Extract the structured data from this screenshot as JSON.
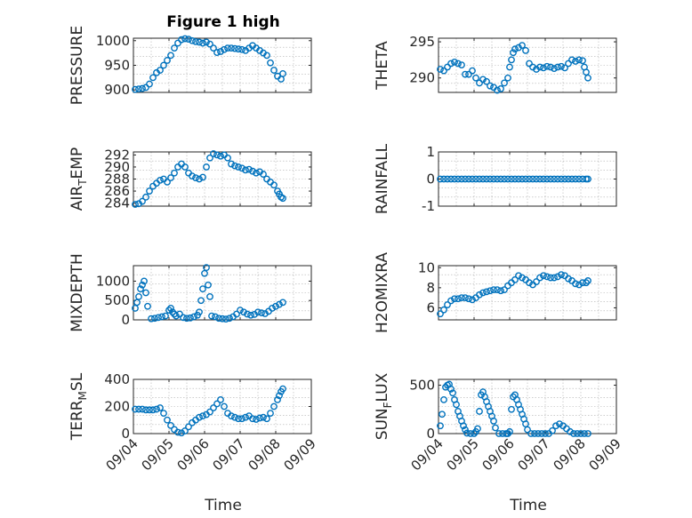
{
  "figure": {
    "title": "Figure 1 high"
  },
  "chart_data": [
    {
      "type": "scatter",
      "id": "pressure",
      "ylabel": "PRESSURE",
      "xlabel": "",
      "ylim": [
        895,
        1005
      ],
      "yticks": [
        900,
        950,
        1000
      ],
      "xlim": [
        0,
        5
      ],
      "xticks": [
        0,
        1,
        2,
        3,
        4,
        5
      ],
      "xticklabels": [
        "09/04",
        "09/05",
        "09/06",
        "09/07",
        "09/08",
        "09/09"
      ],
      "show_xticklabels": false,
      "x": [
        0.05,
        0.15,
        0.25,
        0.35,
        0.45,
        0.55,
        0.65,
        0.75,
        0.85,
        0.95,
        1.05,
        1.15,
        1.25,
        1.35,
        1.45,
        1.55,
        1.65,
        1.75,
        1.85,
        1.95,
        2.05,
        2.15,
        2.25,
        2.35,
        2.45,
        2.55,
        2.65,
        2.75,
        2.85,
        2.95,
        3.05,
        3.15,
        3.25,
        3.35,
        3.45,
        3.55,
        3.65,
        3.75,
        3.85,
        3.95,
        4.05,
        4.15,
        4.2
      ],
      "y": [
        901,
        902,
        903,
        905,
        912,
        925,
        935,
        940,
        950,
        960,
        970,
        985,
        995,
        1002,
        1004,
        1003,
        1000,
        998,
        997,
        995,
        997,
        993,
        985,
        976,
        978,
        982,
        985,
        985,
        984,
        983,
        982,
        980,
        985,
        990,
        985,
        980,
        975,
        970,
        955,
        940,
        928,
        922,
        933
      ]
    },
    {
      "type": "scatter",
      "id": "theta",
      "ylabel": "THETA",
      "xlabel": "",
      "ylim": [
        288,
        295.5
      ],
      "yticks": [
        290,
        295
      ],
      "xlim": [
        0,
        5
      ],
      "xticks": [
        0,
        1,
        2,
        3,
        4,
        5
      ],
      "xticklabels": [
        "09/04",
        "09/05",
        "09/06",
        "09/07",
        "09/08",
        "09/09"
      ],
      "show_xticklabels": false,
      "x": [
        0.05,
        0.15,
        0.25,
        0.35,
        0.45,
        0.55,
        0.65,
        0.75,
        0.85,
        0.95,
        1.05,
        1.15,
        1.25,
        1.35,
        1.45,
        1.55,
        1.65,
        1.75,
        1.85,
        1.95,
        2.0,
        2.05,
        2.1,
        2.15,
        2.25,
        2.35,
        2.45,
        2.55,
        2.65,
        2.75,
        2.85,
        2.95,
        3.05,
        3.15,
        3.25,
        3.35,
        3.45,
        3.55,
        3.65,
        3.75,
        3.85,
        3.95,
        4.05,
        4.1,
        4.15,
        4.2
      ],
      "y": [
        291.2,
        291.0,
        291.5,
        292.0,
        292.2,
        292.0,
        291.8,
        290.5,
        290.5,
        291.0,
        290.0,
        289.3,
        289.8,
        289.5,
        288.9,
        288.7,
        288.3,
        288.5,
        289.3,
        290.0,
        291.5,
        292.5,
        293.5,
        294.0,
        294.2,
        294.5,
        293.8,
        292.0,
        291.5,
        291.2,
        291.5,
        291.4,
        291.6,
        291.5,
        291.3,
        291.5,
        291.6,
        291.4,
        292.0,
        292.5,
        292.3,
        292.5,
        292.4,
        291.5,
        290.8,
        290.0
      ]
    },
    {
      "type": "scatter",
      "id": "airtemp",
      "ylabel": "AIR_TEMP",
      "ylabel_main": "AIR",
      "ylabel_sub": "T",
      "ylabel_rest": "EMP",
      "xlabel": "",
      "ylim": [
        283.5,
        292.5
      ],
      "yticks": [
        284,
        286,
        288,
        290,
        292
      ],
      "xlim": [
        0,
        5
      ],
      "xticks": [
        0,
        1,
        2,
        3,
        4,
        5
      ],
      "xticklabels": [
        "09/04",
        "09/05",
        "09/06",
        "09/07",
        "09/08",
        "09/09"
      ],
      "show_xticklabels": false,
      "x": [
        0.05,
        0.15,
        0.25,
        0.35,
        0.45,
        0.55,
        0.65,
        0.75,
        0.85,
        0.95,
        1.05,
        1.15,
        1.25,
        1.35,
        1.45,
        1.55,
        1.65,
        1.75,
        1.85,
        1.95,
        2.05,
        2.15,
        2.25,
        2.35,
        2.45,
        2.55,
        2.65,
        2.75,
        2.85,
        2.95,
        3.05,
        3.15,
        3.25,
        3.35,
        3.45,
        3.55,
        3.65,
        3.75,
        3.85,
        3.95,
        4.05,
        4.1,
        4.15,
        4.2
      ],
      "y": [
        283.8,
        283.9,
        284.3,
        285.0,
        286.0,
        286.8,
        287.3,
        287.8,
        288.0,
        287.5,
        288.2,
        289.0,
        290.0,
        290.5,
        290.0,
        289.0,
        288.5,
        288.2,
        288.0,
        288.3,
        290.0,
        291.5,
        292.2,
        292.0,
        291.8,
        292.0,
        291.5,
        290.5,
        290.2,
        290.0,
        289.8,
        289.5,
        289.6,
        289.3,
        289.0,
        289.2,
        288.8,
        288.0,
        287.5,
        287.0,
        286.0,
        285.5,
        285.0,
        284.8
      ]
    },
    {
      "type": "scatter",
      "id": "rainfall",
      "ylabel": "RAINFALL",
      "xlabel": "",
      "ylim": [
        -1,
        1
      ],
      "yticks": [
        -1,
        0,
        1
      ],
      "xlim": [
        0,
        5
      ],
      "xticks": [
        0,
        1,
        2,
        3,
        4,
        5
      ],
      "xticklabels": [
        "09/04",
        "09/05",
        "09/06",
        "09/07",
        "09/08",
        "09/09"
      ],
      "show_xticklabels": false,
      "x": [
        0.05,
        0.15,
        0.25,
        0.35,
        0.45,
        0.55,
        0.65,
        0.75,
        0.85,
        0.95,
        1.05,
        1.15,
        1.25,
        1.35,
        1.45,
        1.55,
        1.65,
        1.75,
        1.85,
        1.95,
        2.05,
        2.15,
        2.25,
        2.35,
        2.45,
        2.55,
        2.65,
        2.75,
        2.85,
        2.95,
        3.05,
        3.15,
        3.25,
        3.35,
        3.45,
        3.55,
        3.65,
        3.75,
        3.85,
        3.95,
        4.05,
        4.15,
        4.2
      ],
      "y": [
        0,
        0,
        0,
        0,
        0,
        0,
        0,
        0,
        0,
        0,
        0,
        0,
        0,
        0,
        0,
        0,
        0,
        0,
        0,
        0,
        0,
        0,
        0,
        0,
        0,
        0,
        0,
        0,
        0,
        0,
        0,
        0,
        0,
        0,
        0,
        0,
        0,
        0,
        0,
        0,
        0,
        0,
        0
      ]
    },
    {
      "type": "scatter",
      "id": "mixdepth",
      "ylabel": "MIXDEPTH",
      "xlabel": "",
      "ylim": [
        0,
        1400
      ],
      "yticks": [
        0,
        500,
        1000
      ],
      "xlim": [
        0,
        5
      ],
      "xticks": [
        0,
        1,
        2,
        3,
        4,
        5
      ],
      "xticklabels": [
        "09/04",
        "09/05",
        "09/06",
        "09/07",
        "09/08",
        "09/09"
      ],
      "show_xticklabels": false,
      "x": [
        0.05,
        0.1,
        0.15,
        0.2,
        0.25,
        0.3,
        0.35,
        0.4,
        0.5,
        0.6,
        0.7,
        0.8,
        0.9,
        1.0,
        1.05,
        1.1,
        1.15,
        1.2,
        1.3,
        1.4,
        1.5,
        1.6,
        1.7,
        1.8,
        1.85,
        1.9,
        1.95,
        2.0,
        2.05,
        2.1,
        2.15,
        2.2,
        2.3,
        2.4,
        2.5,
        2.6,
        2.7,
        2.8,
        2.9,
        3.0,
        3.1,
        3.2,
        3.3,
        3.4,
        3.5,
        3.6,
        3.7,
        3.8,
        3.9,
        4.0,
        4.1,
        4.2
      ],
      "y": [
        300,
        450,
        600,
        800,
        900,
        1000,
        700,
        350,
        30,
        40,
        60,
        80,
        100,
        250,
        300,
        200,
        150,
        100,
        150,
        60,
        40,
        50,
        80,
        120,
        200,
        500,
        800,
        1200,
        1350,
        900,
        600,
        100,
        80,
        40,
        30,
        20,
        40,
        80,
        150,
        250,
        200,
        150,
        120,
        140,
        200,
        180,
        160,
        220,
        300,
        350,
        400,
        450
      ]
    },
    {
      "type": "scatter",
      "id": "h2omixra",
      "ylabel": "H2OMIXRA",
      "xlabel": "",
      "ylim": [
        4.8,
        10.2
      ],
      "yticks": [
        6,
        8,
        10
      ],
      "xlim": [
        0,
        5
      ],
      "xticks": [
        0,
        1,
        2,
        3,
        4,
        5
      ],
      "xticklabels": [
        "09/04",
        "09/05",
        "09/06",
        "09/07",
        "09/08",
        "09/09"
      ],
      "show_xticklabels": false,
      "x": [
        0.05,
        0.15,
        0.25,
        0.35,
        0.45,
        0.55,
        0.65,
        0.75,
        0.85,
        0.95,
        1.05,
        1.15,
        1.25,
        1.35,
        1.45,
        1.55,
        1.65,
        1.75,
        1.85,
        1.95,
        2.05,
        2.15,
        2.25,
        2.35,
        2.45,
        2.55,
        2.65,
        2.75,
        2.85,
        2.95,
        3.05,
        3.15,
        3.25,
        3.35,
        3.45,
        3.55,
        3.65,
        3.75,
        3.85,
        3.95,
        4.05,
        4.15,
        4.2
      ],
      "y": [
        5.4,
        5.8,
        6.3,
        6.7,
        6.9,
        6.9,
        7.0,
        7.0,
        6.9,
        6.8,
        7.0,
        7.3,
        7.5,
        7.6,
        7.7,
        7.8,
        7.8,
        7.7,
        7.8,
        8.2,
        8.5,
        8.8,
        9.2,
        9.0,
        8.8,
        8.5,
        8.3,
        8.6,
        9.0,
        9.2,
        9.1,
        9.0,
        9.0,
        9.1,
        9.3,
        9.2,
        8.9,
        8.7,
        8.4,
        8.3,
        8.5,
        8.5,
        8.7
      ]
    },
    {
      "type": "scatter",
      "id": "terrmsl",
      "ylabel": "TERR_MSL",
      "ylabel_main": "TERR",
      "ylabel_sub": "M",
      "ylabel_rest": "SL",
      "xlabel": "Time",
      "ylim": [
        0,
        400
      ],
      "yticks": [
        0,
        200,
        400
      ],
      "xlim": [
        0,
        5
      ],
      "xticks": [
        0,
        1,
        2,
        3,
        4,
        5
      ],
      "xticklabels": [
        "09/04",
        "09/05",
        "09/06",
        "09/07",
        "09/08",
        "09/09"
      ],
      "show_xticklabels": true,
      "x": [
        0.05,
        0.15,
        0.25,
        0.35,
        0.45,
        0.55,
        0.65,
        0.75,
        0.85,
        0.95,
        1.05,
        1.15,
        1.25,
        1.35,
        1.45,
        1.55,
        1.65,
        1.75,
        1.85,
        1.95,
        2.05,
        2.15,
        2.25,
        2.35,
        2.45,
        2.55,
        2.65,
        2.75,
        2.85,
        2.95,
        3.05,
        3.15,
        3.25,
        3.35,
        3.45,
        3.55,
        3.65,
        3.75,
        3.85,
        3.95,
        4.05,
        4.1,
        4.15,
        4.2
      ],
      "y": [
        180,
        180,
        180,
        175,
        175,
        175,
        180,
        190,
        150,
        100,
        60,
        30,
        10,
        5,
        20,
        50,
        80,
        100,
        120,
        130,
        140,
        160,
        190,
        220,
        250,
        200,
        150,
        130,
        120,
        110,
        110,
        120,
        130,
        110,
        105,
        115,
        120,
        110,
        150,
        200,
        250,
        280,
        310,
        330
      ]
    },
    {
      "type": "scatter",
      "id": "sunflux",
      "ylabel": "SUN_FLUX",
      "ylabel_main": "SUN",
      "ylabel_sub": "F",
      "ylabel_rest": "LUX",
      "xlabel": "Time",
      "ylim": [
        0,
        560
      ],
      "yticks": [
        0,
        500
      ],
      "xlim": [
        0,
        5
      ],
      "xticks": [
        0,
        1,
        2,
        3,
        4,
        5
      ],
      "xticklabels": [
        "09/04",
        "09/05",
        "09/06",
        "09/07",
        "09/08",
        "09/09"
      ],
      "show_xticklabels": true,
      "x": [
        0.05,
        0.1,
        0.15,
        0.2,
        0.25,
        0.3,
        0.35,
        0.4,
        0.45,
        0.5,
        0.55,
        0.6,
        0.65,
        0.7,
        0.75,
        0.8,
        0.9,
        1.0,
        1.05,
        1.1,
        1.15,
        1.2,
        1.25,
        1.3,
        1.35,
        1.4,
        1.45,
        1.5,
        1.55,
        1.6,
        1.7,
        1.8,
        1.9,
        1.95,
        2.0,
        2.05,
        2.1,
        2.15,
        2.2,
        2.25,
        2.3,
        2.35,
        2.4,
        2.45,
        2.5,
        2.6,
        2.7,
        2.8,
        2.9,
        3.0,
        3.1,
        3.2,
        3.3,
        3.4,
        3.5,
        3.6,
        3.7,
        3.8,
        3.9,
        4.0,
        4.1,
        4.2
      ],
      "y": [
        80,
        200,
        350,
        480,
        500,
        510,
        460,
        420,
        350,
        300,
        230,
        180,
        130,
        80,
        40,
        5,
        0,
        0,
        20,
        50,
        230,
        400,
        430,
        380,
        330,
        280,
        230,
        180,
        130,
        60,
        0,
        0,
        0,
        0,
        20,
        250,
        380,
        400,
        350,
        300,
        250,
        200,
        150,
        100,
        40,
        0,
        0,
        0,
        0,
        0,
        0,
        30,
        80,
        100,
        80,
        50,
        20,
        0,
        0,
        0,
        0,
        0
      ]
    }
  ]
}
